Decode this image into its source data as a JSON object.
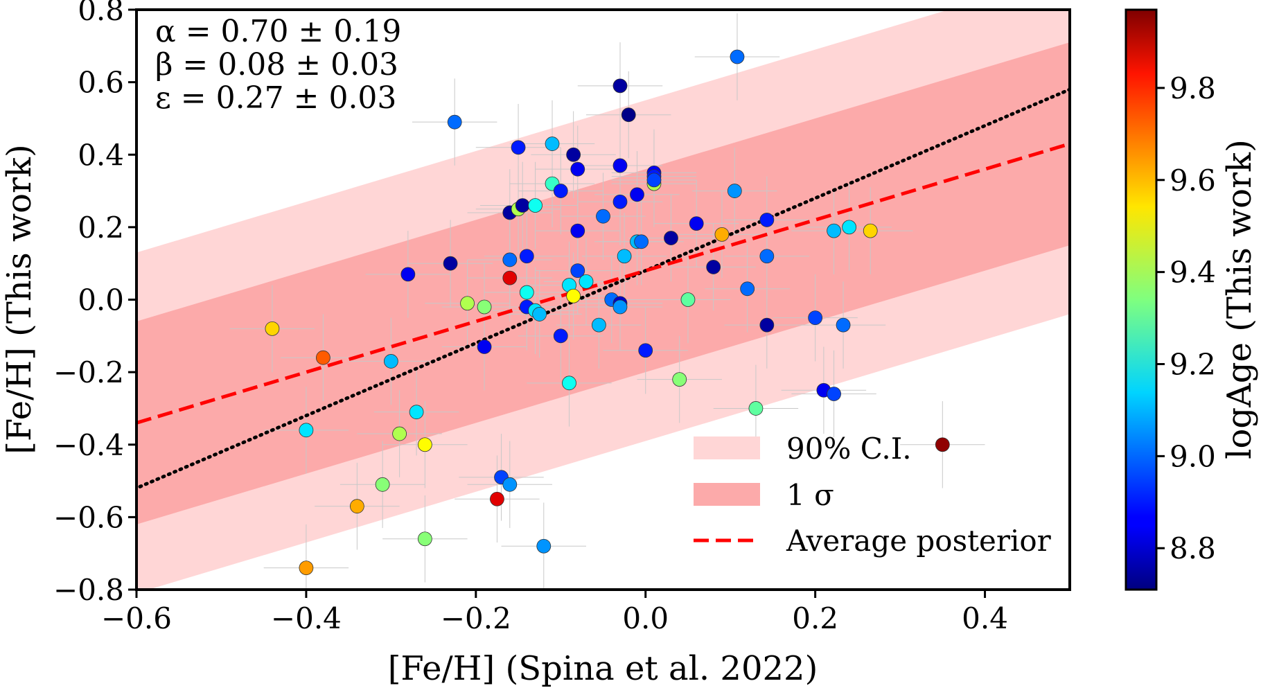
{
  "chart_data": {
    "type": "scatter",
    "xlabel": "[Fe/H] (Spina et al. 2022)",
    "ylabel": "[Fe/H] (This work)",
    "colorbar_label": "logAge (This work)",
    "xlim": [
      -0.6,
      0.5
    ],
    "ylim": [
      -0.8,
      0.8
    ],
    "clim": [
      8.71,
      9.97
    ],
    "colormap": "jet",
    "xticks": [
      -0.6,
      -0.4,
      -0.2,
      0.0,
      0.2,
      0.4
    ],
    "xtick_labels": [
      "−0.6",
      "−0.4",
      "−0.2",
      "0.0",
      "0.2",
      "0.4"
    ],
    "yticks": [
      -0.8,
      -0.6,
      -0.4,
      -0.2,
      0.0,
      0.2,
      0.4,
      0.6,
      0.8
    ],
    "ytick_labels": [
      "−0.8",
      "−0.6",
      "−0.4",
      "−0.2",
      "0.0",
      "0.2",
      "0.4",
      "0.6",
      "0.8"
    ],
    "cticks": [
      8.8,
      9.0,
      9.2,
      9.4,
      9.6,
      9.8
    ],
    "ctick_labels": [
      "8.8",
      "9.0",
      "9.2",
      "9.4",
      "9.6",
      "9.8"
    ],
    "grid": false,
    "annotations": [
      "α = 0.70 ± 0.19",
      "β = 0.08 ± 0.03",
      "ε = 0.27 ± 0.03"
    ],
    "fit": {
      "slope": 0.7,
      "intercept": 0.08,
      "sigma_halfwidth": 0.28,
      "ci90_halfwidth": 0.47
    },
    "reference_line": {
      "slope": 1.0,
      "intercept": 0.08,
      "style": "dotted",
      "color": "#000000"
    },
    "legend": {
      "placement": "lower-right",
      "entries": [
        {
          "label": "90% C.I.",
          "color": "#ffd6d6"
        },
        {
          "label": "1 σ",
          "color": "#fcaaaa"
        },
        {
          "label": "Average posterior",
          "color": "#ff0000"
        }
      ]
    },
    "errorbars": {
      "x": 0.05,
      "y": 0.12,
      "color": "#c8c8c8"
    },
    "points": [
      [
        -0.44,
        -0.08,
        9.55
      ],
      [
        -0.38,
        -0.16,
        9.7
      ],
      [
        -0.4,
        -0.36,
        9.15
      ],
      [
        -0.4,
        -0.74,
        9.62
      ],
      [
        -0.34,
        -0.57,
        9.6
      ],
      [
        -0.31,
        -0.51,
        9.35
      ],
      [
        -0.3,
        -0.17,
        9.1
      ],
      [
        -0.29,
        -0.37,
        9.4
      ],
      [
        -0.27,
        -0.31,
        9.15
      ],
      [
        -0.26,
        -0.4,
        9.5
      ],
      [
        -0.26,
        -0.66,
        9.35
      ],
      [
        -0.28,
        0.07,
        8.85
      ],
      [
        -0.23,
        0.1,
        8.75
      ],
      [
        -0.225,
        0.49,
        9.0
      ],
      [
        -0.21,
        -0.01,
        9.4
      ],
      [
        -0.19,
        -0.02,
        9.35
      ],
      [
        -0.19,
        -0.13,
        8.85
      ],
      [
        -0.175,
        -0.55,
        9.85
      ],
      [
        -0.17,
        -0.49,
        8.95
      ],
      [
        -0.16,
        -0.51,
        9.05
      ],
      [
        -0.16,
        0.06,
        9.85
      ],
      [
        -0.16,
        0.11,
        9.0
      ],
      [
        -0.16,
        0.24,
        8.75
      ],
      [
        -0.15,
        0.25,
        9.4
      ],
      [
        -0.15,
        0.42,
        8.9
      ],
      [
        -0.145,
        0.26,
        8.75
      ],
      [
        -0.14,
        0.12,
        8.9
      ],
      [
        -0.14,
        0.02,
        9.2
      ],
      [
        -0.14,
        -0.02,
        8.9
      ],
      [
        -0.13,
        -0.03,
        9.15
      ],
      [
        -0.125,
        -0.04,
        9.1
      ],
      [
        -0.13,
        0.26,
        9.2
      ],
      [
        -0.12,
        -0.68,
        9.05
      ],
      [
        -0.11,
        0.43,
        9.1
      ],
      [
        -0.11,
        0.32,
        9.25
      ],
      [
        -0.1,
        0.3,
        8.9
      ],
      [
        -0.1,
        -0.1,
        8.9
      ],
      [
        -0.09,
        -0.23,
        9.2
      ],
      [
        -0.09,
        0.04,
        9.15
      ],
      [
        -0.085,
        0.4,
        8.75
      ],
      [
        -0.085,
        0.01,
        9.5
      ],
      [
        -0.08,
        0.36,
        8.85
      ],
      [
        -0.08,
        0.19,
        8.85
      ],
      [
        -0.08,
        0.08,
        8.95
      ],
      [
        -0.07,
        0.05,
        9.15
      ],
      [
        -0.055,
        -0.07,
        9.1
      ],
      [
        -0.05,
        0.23,
        9.0
      ],
      [
        -0.04,
        0.0,
        9.0
      ],
      [
        -0.03,
        -0.01,
        8.8
      ],
      [
        -0.03,
        -0.02,
        9.05
      ],
      [
        -0.03,
        0.59,
        8.75
      ],
      [
        -0.03,
        0.37,
        8.85
      ],
      [
        -0.03,
        0.27,
        8.9
      ],
      [
        -0.025,
        0.12,
        9.1
      ],
      [
        -0.02,
        0.51,
        8.72
      ],
      [
        -0.01,
        0.29,
        8.85
      ],
      [
        -0.01,
        0.16,
        9.1
      ],
      [
        -0.005,
        0.16,
        9.0
      ],
      [
        0.0,
        -0.14,
        8.9
      ],
      [
        0.01,
        0.35,
        8.85
      ],
      [
        0.01,
        0.34,
        8.9
      ],
      [
        0.01,
        0.32,
        9.4
      ],
      [
        0.01,
        0.33,
        8.95
      ],
      [
        0.03,
        0.17,
        8.75
      ],
      [
        0.04,
        -0.22,
        9.35
      ],
      [
        0.05,
        0.0,
        9.3
      ],
      [
        0.06,
        0.21,
        8.85
      ],
      [
        0.08,
        0.09,
        8.75
      ],
      [
        0.09,
        0.18,
        9.6
      ],
      [
        0.105,
        0.3,
        9.05
      ],
      [
        0.108,
        0.67,
        9.0
      ],
      [
        0.12,
        0.03,
        9.0
      ],
      [
        0.13,
        -0.3,
        9.3
      ],
      [
        0.143,
        0.22,
        8.9
      ],
      [
        0.143,
        0.12,
        9.0
      ],
      [
        0.143,
        -0.07,
        8.75
      ],
      [
        0.2,
        -0.05,
        8.95
      ],
      [
        0.21,
        -0.25,
        8.85
      ],
      [
        0.222,
        0.19,
        9.1
      ],
      [
        0.222,
        -0.26,
        8.95
      ],
      [
        0.233,
        -0.07,
        9.0
      ],
      [
        0.24,
        0.2,
        9.15
      ],
      [
        0.265,
        0.19,
        9.55
      ],
      [
        0.35,
        -0.4,
        9.95
      ]
    ]
  }
}
